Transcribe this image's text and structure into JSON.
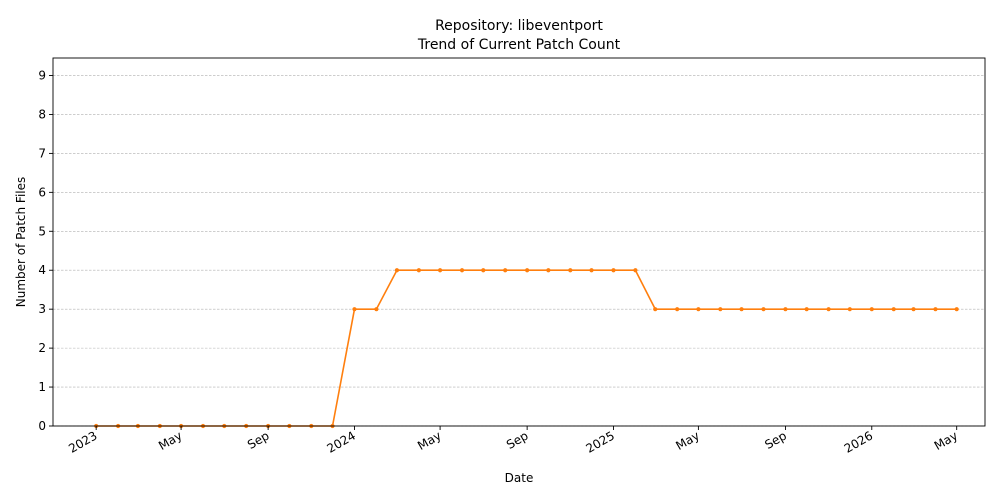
{
  "chart_data": {
    "type": "line",
    "title": "Repository: libeventport",
    "subtitle": "Trend of Current Patch Count",
    "xlabel": "Date",
    "ylabel": "Number of Patch Files",
    "ylim": [
      0,
      9.45
    ],
    "xlim": [
      "2022-11-01",
      "2026-06-10"
    ],
    "yticks": [
      0,
      1,
      2,
      3,
      4,
      5,
      6,
      7,
      8,
      9
    ],
    "xticks": [
      {
        "date": "2023-01-01",
        "label": "2023"
      },
      {
        "date": "2023-05-01",
        "label": "May"
      },
      {
        "date": "2023-09-01",
        "label": "Sep"
      },
      {
        "date": "2024-01-01",
        "label": "2024"
      },
      {
        "date": "2024-05-01",
        "label": "May"
      },
      {
        "date": "2024-09-01",
        "label": "Sep"
      },
      {
        "date": "2025-01-01",
        "label": "2025"
      },
      {
        "date": "2025-05-01",
        "label": "May"
      },
      {
        "date": "2025-09-01",
        "label": "Sep"
      },
      {
        "date": "2026-01-01",
        "label": "2026"
      },
      {
        "date": "2026-05-01",
        "label": "May"
      }
    ],
    "grid": "y-major",
    "line_color": "#ff7f0e",
    "series": [
      {
        "x": [
          "2023-01-01",
          "2023-02-01",
          "2023-03-01",
          "2023-04-01",
          "2023-05-01",
          "2023-06-01",
          "2023-07-01",
          "2023-08-01",
          "2023-09-01",
          "2023-10-01",
          "2023-11-01",
          "2023-12-01",
          "2024-01-01",
          "2024-02-01",
          "2024-03-01",
          "2024-04-01",
          "2024-05-01",
          "2024-06-01",
          "2024-07-01",
          "2024-08-01",
          "2024-09-01",
          "2024-10-01",
          "2024-11-01",
          "2024-12-01",
          "2025-01-01",
          "2025-02-01",
          "2025-03-01",
          "2025-04-01",
          "2025-05-01",
          "2025-06-01",
          "2025-07-01",
          "2025-08-01",
          "2025-09-01",
          "2025-10-01",
          "2025-11-01",
          "2025-12-01",
          "2026-01-01",
          "2026-02-01",
          "2026-03-01",
          "2026-04-01",
          "2026-05-01"
        ],
        "values": [
          0,
          0,
          0,
          0,
          0,
          0,
          0,
          0,
          0,
          0,
          0,
          0,
          3,
          3,
          4,
          4,
          4,
          4,
          4,
          4,
          4,
          4,
          4,
          4,
          4,
          4,
          3,
          3,
          3,
          3,
          3,
          3,
          3,
          3,
          3,
          3,
          3,
          3,
          3,
          3,
          3
        ]
      }
    ]
  }
}
